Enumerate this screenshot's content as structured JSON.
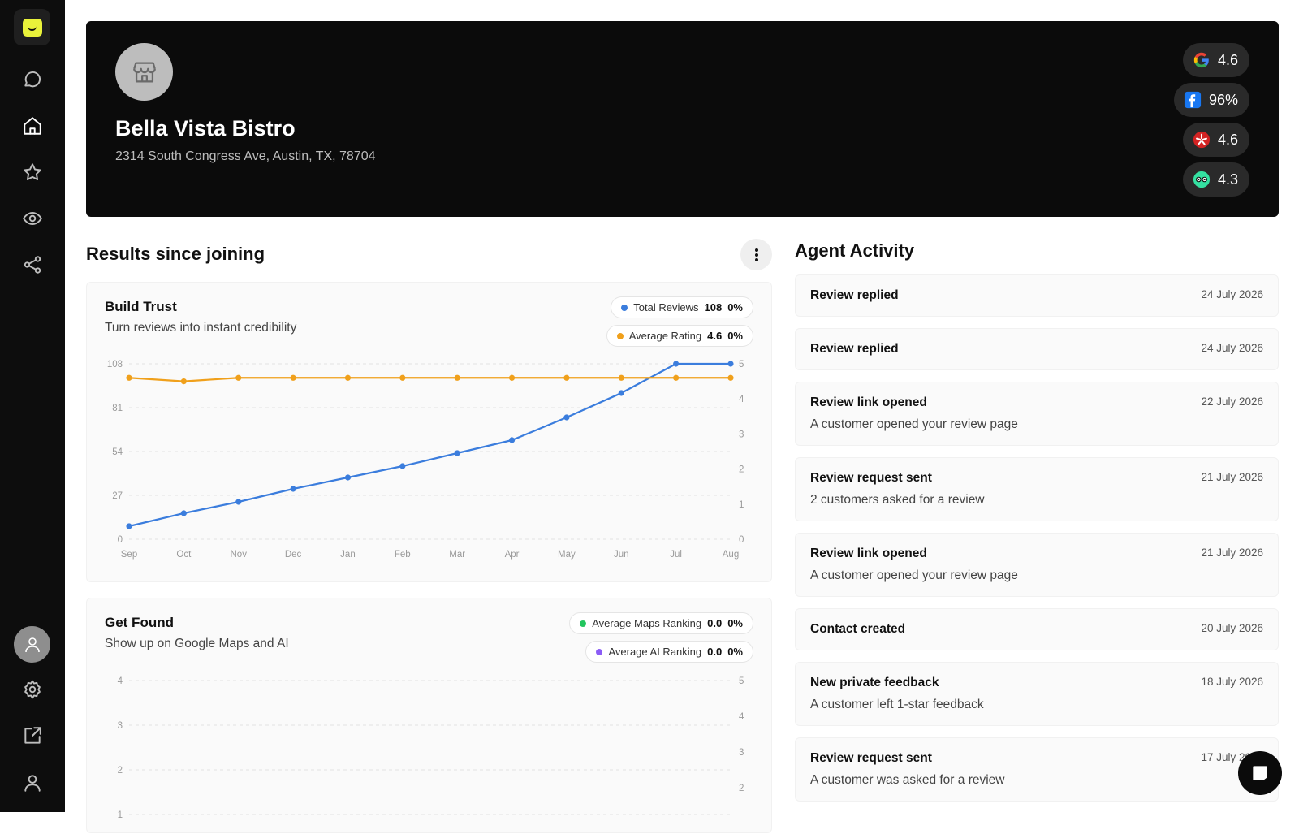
{
  "business": {
    "name": "Bella Vista Bistro",
    "address": "2314 South Congress Ave, Austin, TX, 78704"
  },
  "ratings": [
    {
      "source_icon": "google-icon",
      "value": "4.6"
    },
    {
      "source_icon": "facebook-icon",
      "value": "96%"
    },
    {
      "source_icon": "yelp-icon",
      "value": "4.6"
    },
    {
      "source_icon": "tripadvisor-icon",
      "value": "4.3"
    }
  ],
  "results": {
    "title": "Results since joining"
  },
  "build_trust": {
    "title": "Build Trust",
    "subtitle": "Turn reviews into instant credibility",
    "legend": [
      {
        "label": "Total Reviews",
        "value": "108",
        "change": "0%",
        "color": "#3b7ddd"
      },
      {
        "label": "Average Rating",
        "value": "4.6",
        "change": "0%",
        "color": "#f0a01b"
      }
    ]
  },
  "get_found": {
    "title": "Get Found",
    "subtitle": "Show up on Google Maps and AI",
    "legend": [
      {
        "label": "Average Maps Ranking",
        "value": "0.0",
        "change": "0%",
        "color": "#22c55e"
      },
      {
        "label": "Average AI Ranking",
        "value": "0.0",
        "change": "0%",
        "color": "#8b5cf6"
      }
    ]
  },
  "chart_data": [
    {
      "type": "line",
      "title": "Build Trust",
      "categories": [
        "Sep",
        "Oct",
        "Nov",
        "Dec",
        "Jan",
        "Feb",
        "Mar",
        "Apr",
        "May",
        "Jun",
        "Jul",
        "Aug"
      ],
      "y_left_ticks": [
        "0",
        "27",
        "54",
        "81",
        "108"
      ],
      "y_right_ticks": [
        "0",
        "1",
        "2",
        "3",
        "4",
        "5"
      ],
      "ylim_left": [
        0,
        108
      ],
      "ylim_right": [
        0,
        5
      ],
      "series": [
        {
          "name": "Total Reviews",
          "axis": "left",
          "color": "#3b7ddd",
          "values": [
            8,
            16,
            23,
            31,
            38,
            45,
            53,
            61,
            75,
            90,
            108,
            108
          ]
        },
        {
          "name": "Average Rating",
          "axis": "right",
          "color": "#f0a01b",
          "values": [
            4.6,
            4.5,
            4.6,
            4.6,
            4.6,
            4.6,
            4.6,
            4.6,
            4.6,
            4.6,
            4.6,
            4.6
          ]
        }
      ],
      "grid": true
    },
    {
      "type": "line",
      "title": "Get Found",
      "y_left_ticks": [
        "1",
        "2",
        "3",
        "4"
      ],
      "y_right_ticks": [
        "2",
        "3",
        "4",
        "5"
      ],
      "series": [
        {
          "name": "Average Maps Ranking",
          "axis": "left",
          "color": "#22c55e",
          "values": []
        },
        {
          "name": "Average AI Ranking",
          "axis": "right",
          "color": "#8b5cf6",
          "values": []
        }
      ],
      "grid": true
    }
  ],
  "activity": {
    "title": "Agent Activity",
    "items": [
      {
        "title": "Review replied",
        "date": "24 July 2026",
        "desc": ""
      },
      {
        "title": "Review replied",
        "date": "24 July 2026",
        "desc": ""
      },
      {
        "title": "Review link opened",
        "date": "22 July 2026",
        "desc": "A customer opened your review page"
      },
      {
        "title": "Review request sent",
        "date": "21 July 2026",
        "desc": "2 customers asked for a review"
      },
      {
        "title": "Review link opened",
        "date": "21 July 2026",
        "desc": "A customer opened your review page"
      },
      {
        "title": "Contact created",
        "date": "20 July 2026",
        "desc": ""
      },
      {
        "title": "New private feedback",
        "date": "18 July 2026",
        "desc": "A customer left 1-star feedback"
      },
      {
        "title": "Review request sent",
        "date": "17 July 2026",
        "desc": "A customer was asked for a review"
      }
    ]
  }
}
